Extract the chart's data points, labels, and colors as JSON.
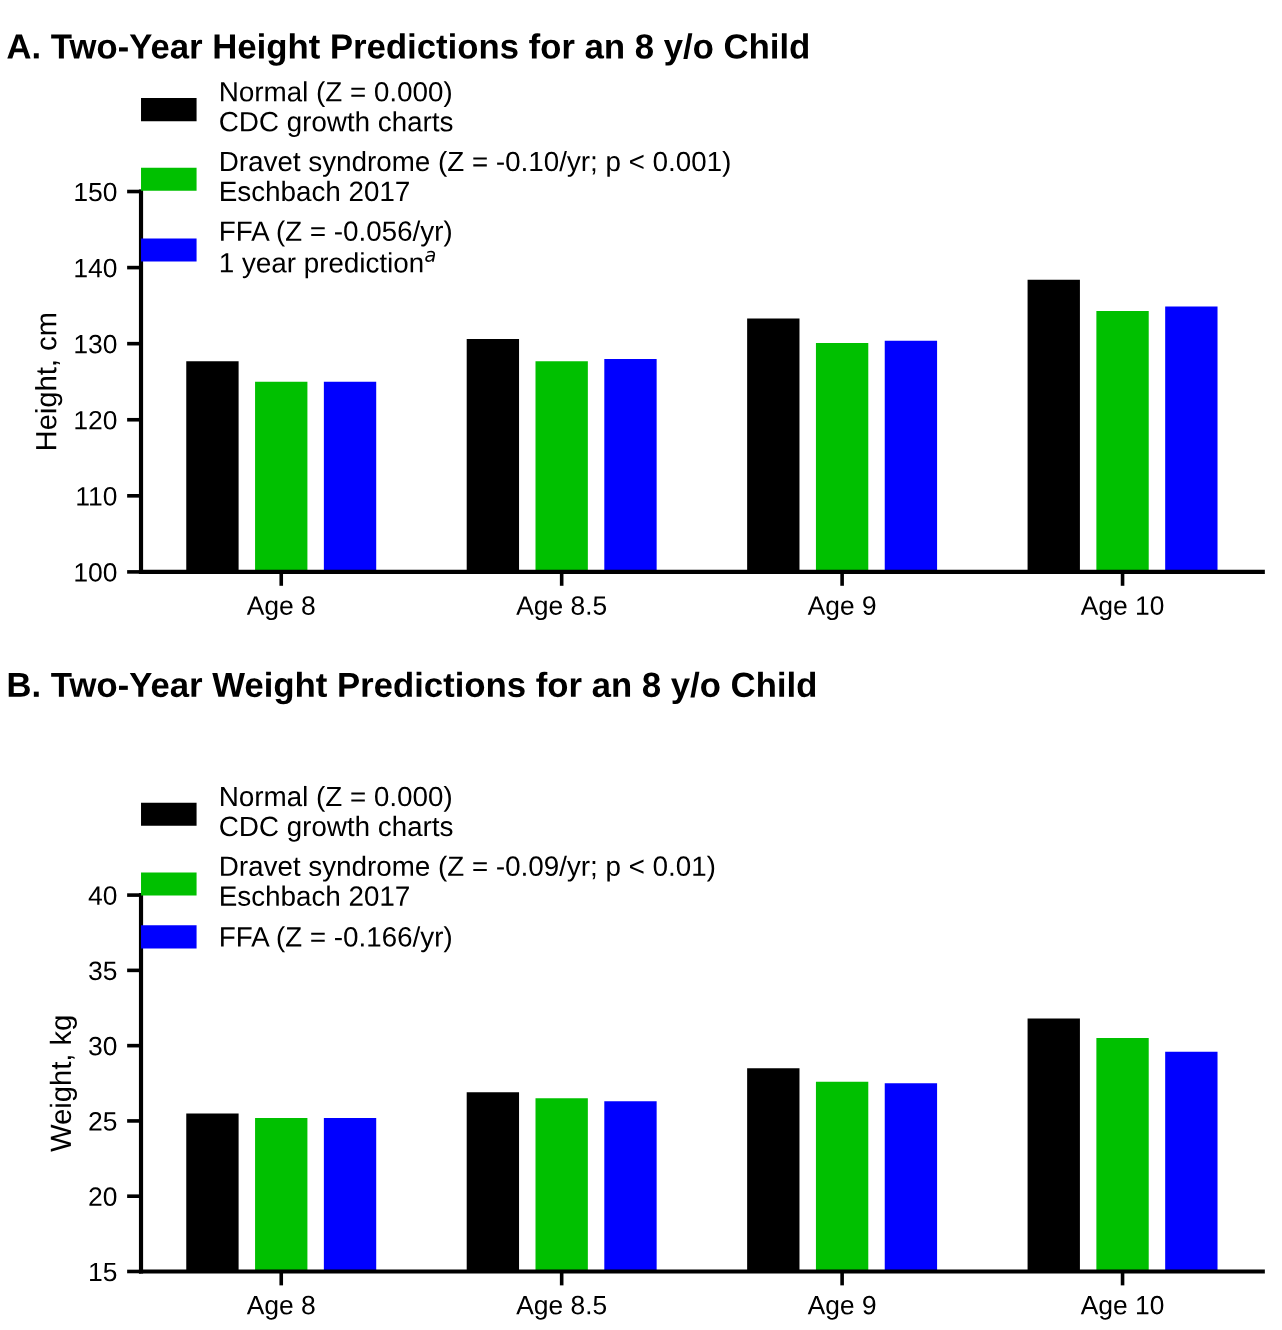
{
  "chart_data": [
    {
      "type": "bar",
      "title": "A. Two-Year Height Predictions for an 8 y/o Child",
      "ylabel": "Height, cm",
      "categories": [
        "Age 8",
        "Age 8.5",
        "Age 9",
        "Age 10"
      ],
      "ylim": [
        100,
        150
      ],
      "yticks": [
        100,
        110,
        120,
        130,
        140,
        150
      ],
      "legend": "top left",
      "grid": false,
      "series": [
        {
          "name": "Normal (Z = 0.000)\nCDC growth charts",
          "color": "#000000",
          "values": [
            127.7,
            130.6,
            133.3,
            138.4
          ]
        },
        {
          "name": "Dravet syndrome (Z = -0.10/yr; p < 0.001)\nEschbach 2017",
          "color": "#00c000",
          "values": [
            125.0,
            127.7,
            130.1,
            134.3
          ]
        },
        {
          "name": "FFA (Z = -0.056/yr)\n1 year prediction$^{a}$",
          "color": "#0000ff",
          "values": [
            125.0,
            128.0,
            130.4,
            134.9
          ]
        }
      ]
    },
    {
      "type": "bar",
      "title": "B. Two-Year Weight Predictions for an 8 y/o Child",
      "ylabel": "Weight, kg",
      "categories": [
        "Age 8",
        "Age 8.5",
        "Age 9",
        "Age 10"
      ],
      "ylim": [
        15,
        40
      ],
      "yticks": [
        15,
        20,
        25,
        30,
        35,
        40
      ],
      "legend": "top left",
      "grid": false,
      "series": [
        {
          "name": "Normal (Z = 0.000)\nCDC growth charts",
          "color": "#000000",
          "values": [
            25.5,
            26.9,
            28.5,
            31.8
          ]
        },
        {
          "name": "Dravet syndrome (Z = -0.09/yr; p < 0.01)\nEschbach 2017",
          "color": "#00c000",
          "values": [
            25.2,
            26.5,
            27.6,
            30.5
          ]
        },
        {
          "name": "FFA (Z = -0.166/yr)",
          "color": "#0000ff",
          "values": [
            25.2,
            26.3,
            27.5,
            29.6
          ]
        }
      ]
    }
  ]
}
